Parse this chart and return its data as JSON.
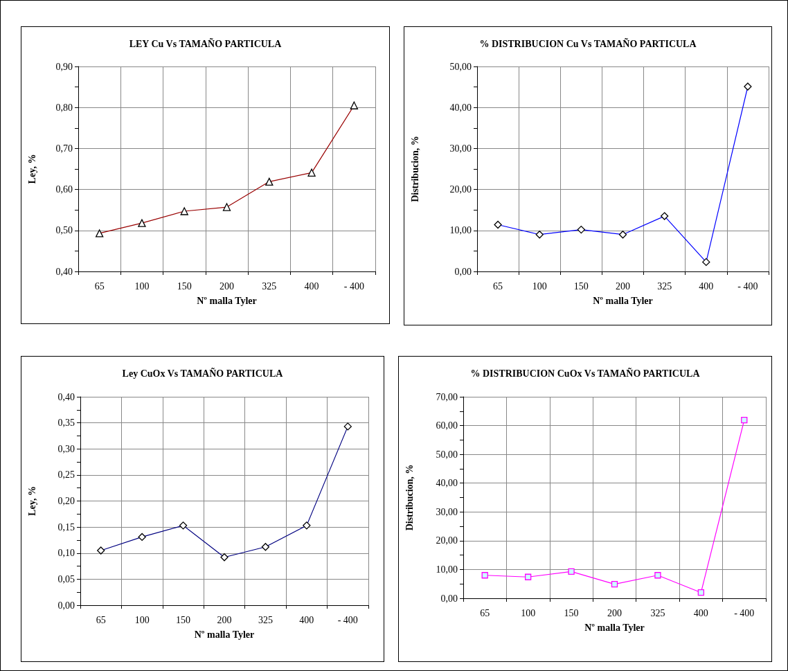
{
  "chart_data": [
    {
      "type": "line",
      "title": "LEY Cu Vs TAMAÑO PARTICULA",
      "xlabel": "Nº malla Tyler",
      "ylabel": "Ley, %",
      "categories": [
        "65",
        "100",
        "150",
        "200",
        "325",
        "400",
        "- 400"
      ],
      "series": [
        {
          "color": "#990000",
          "values": [
            0.493,
            0.518,
            0.547,
            0.557,
            0.619,
            0.641,
            0.805
          ]
        }
      ],
      "ylim": [
        0.4,
        0.9
      ],
      "yticks": [
        {
          "value": 0.4,
          "label": "0,40"
        },
        {
          "value": 0.45,
          "label": null
        },
        {
          "value": 0.5,
          "label": "0,50"
        },
        {
          "value": 0.55,
          "label": null
        },
        {
          "value": 0.6,
          "label": "0,60"
        },
        {
          "value": 0.65,
          "label": null
        },
        {
          "value": 0.7,
          "label": "0,70"
        },
        {
          "value": 0.75,
          "label": null
        },
        {
          "value": 0.8,
          "label": "0,80"
        },
        {
          "value": 0.85,
          "label": null
        },
        {
          "value": 0.9,
          "label": "0,90"
        }
      ],
      "grid": true,
      "marker": "triangle",
      "line_style": "solid"
    },
    {
      "type": "line",
      "title": "% DISTRIBUCION Cu Vs TAMAÑO PARTICULA",
      "xlabel": "Nº malla Tyler",
      "ylabel": "Distribucion, %",
      "categories": [
        "65",
        "100",
        "150",
        "200",
        "325",
        "400",
        "- 400"
      ],
      "series": [
        {
          "color": "#0000ff",
          "values": [
            11.4,
            9.0,
            10.2,
            9.0,
            13.5,
            2.3,
            45.1
          ]
        }
      ],
      "ylim": [
        0,
        50
      ],
      "yticks": [
        {
          "value": 0,
          "label": "0,00"
        },
        {
          "value": 5,
          "label": null
        },
        {
          "value": 10,
          "label": "10,00"
        },
        {
          "value": 15,
          "label": null
        },
        {
          "value": 20,
          "label": "20,00"
        },
        {
          "value": 25,
          "label": null
        },
        {
          "value": 30,
          "label": "30,00"
        },
        {
          "value": 35,
          "label": null
        },
        {
          "value": 40,
          "label": "40,00"
        },
        {
          "value": 45,
          "label": null
        },
        {
          "value": 50,
          "label": "50,00"
        }
      ],
      "grid": true,
      "marker": "diamond",
      "line_style": "solid"
    },
    {
      "type": "line",
      "title": "Ley CuOx Vs TAMAÑO PARTICULA",
      "xlabel": "Nº malla Tyler",
      "ylabel": "Ley, %",
      "categories": [
        "65",
        "100",
        "150",
        "200",
        "325",
        "400",
        "- 400"
      ],
      "series": [
        {
          "color": "#000080",
          "values": [
            0.105,
            0.131,
            0.153,
            0.092,
            0.112,
            0.153,
            0.343
          ]
        }
      ],
      "ylim": [
        0,
        0.4
      ],
      "yticks": [
        {
          "value": 0,
          "label": "0,00"
        },
        {
          "value": 0.025,
          "label": null
        },
        {
          "value": 0.05,
          "label": "0,05"
        },
        {
          "value": 0.075,
          "label": null
        },
        {
          "value": 0.1,
          "label": "0,10"
        },
        {
          "value": 0.125,
          "label": null
        },
        {
          "value": 0.15,
          "label": "0,15"
        },
        {
          "value": 0.175,
          "label": null
        },
        {
          "value": 0.2,
          "label": "0,20"
        },
        {
          "value": 0.225,
          "label": null
        },
        {
          "value": 0.25,
          "label": "0,25"
        },
        {
          "value": 0.275,
          "label": null
        },
        {
          "value": 0.3,
          "label": "0,30"
        },
        {
          "value": 0.325,
          "label": null
        },
        {
          "value": 0.35,
          "label": "0,35"
        },
        {
          "value": 0.375,
          "label": null
        },
        {
          "value": 0.4,
          "label": "0,40"
        }
      ],
      "grid": true,
      "marker": "diamond",
      "line_style": "solid"
    },
    {
      "type": "line",
      "title": "% DISTRIBUCION CuOx Vs TAMAÑO PARTICULA",
      "xlabel": "Nº malla Tyler",
      "ylabel": "Distribucion, %",
      "categories": [
        "65",
        "100",
        "150",
        "200",
        "325",
        "400",
        "- 400"
      ],
      "series": [
        {
          "color": "#ff00ff",
          "values": [
            8.0,
            7.4,
            9.3,
            4.9,
            8.0,
            2.0,
            61.9
          ]
        }
      ],
      "ylim": [
        0,
        70
      ],
      "yticks": [
        {
          "value": 0,
          "label": "0,00"
        },
        {
          "value": 5,
          "label": null
        },
        {
          "value": 10,
          "label": "10,00"
        },
        {
          "value": 15,
          "label": null
        },
        {
          "value": 20,
          "label": "20,00"
        },
        {
          "value": 25,
          "label": null
        },
        {
          "value": 30,
          "label": "30,00"
        },
        {
          "value": 35,
          "label": null
        },
        {
          "value": 40,
          "label": "40,00"
        },
        {
          "value": 45,
          "label": null
        },
        {
          "value": 50,
          "label": "50,00"
        },
        {
          "value": 55,
          "label": null
        },
        {
          "value": 60,
          "label": "60,00"
        },
        {
          "value": 65,
          "label": null
        },
        {
          "value": 70,
          "label": "70,00"
        }
      ],
      "grid": true,
      "marker": "square",
      "line_style": "solid"
    }
  ]
}
